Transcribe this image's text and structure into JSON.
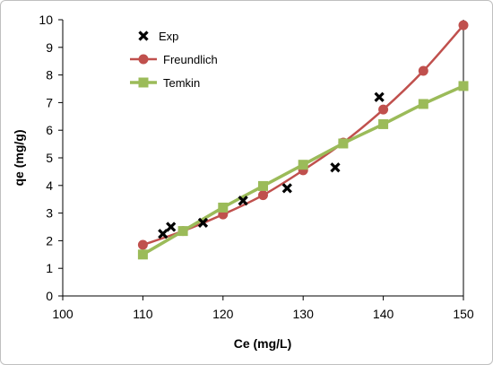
{
  "chart_data": {
    "type": "scatter",
    "xlabel": "Ce (mg/L)",
    "ylabel": "qe (mg/g)",
    "xlim": [
      100,
      150
    ],
    "ylim": [
      0,
      10
    ],
    "xticks": [
      100,
      110,
      120,
      130,
      140,
      150
    ],
    "yticks": [
      0,
      1,
      2,
      3,
      4,
      5,
      6,
      7,
      8,
      9,
      10
    ],
    "grid": false,
    "legend_position": "top-left",
    "series": [
      {
        "name": "Exp",
        "kind": "markers",
        "marker": "x",
        "color": "#000000",
        "x": [
          112.5,
          113.5,
          117.5,
          122.5,
          128,
          134,
          139.5
        ],
        "y": [
          2.25,
          2.5,
          2.65,
          3.45,
          3.9,
          4.65,
          7.2
        ]
      },
      {
        "name": "Freundlich",
        "kind": "line",
        "marker": "circle",
        "color": "#c0504d",
        "x": [
          110,
          115,
          120,
          125,
          130,
          135,
          140,
          145,
          150
        ],
        "y": [
          1.85,
          2.35,
          2.95,
          3.65,
          4.55,
          5.55,
          6.75,
          8.15,
          9.8
        ]
      },
      {
        "name": "Temkin",
        "kind": "line",
        "marker": "square",
        "color": "#9bbb59",
        "x": [
          110,
          115,
          120,
          125,
          130,
          135,
          140,
          145,
          150
        ],
        "y": [
          1.5,
          2.35,
          3.2,
          3.98,
          4.75,
          5.52,
          6.22,
          6.95,
          7.6
        ]
      }
    ]
  }
}
